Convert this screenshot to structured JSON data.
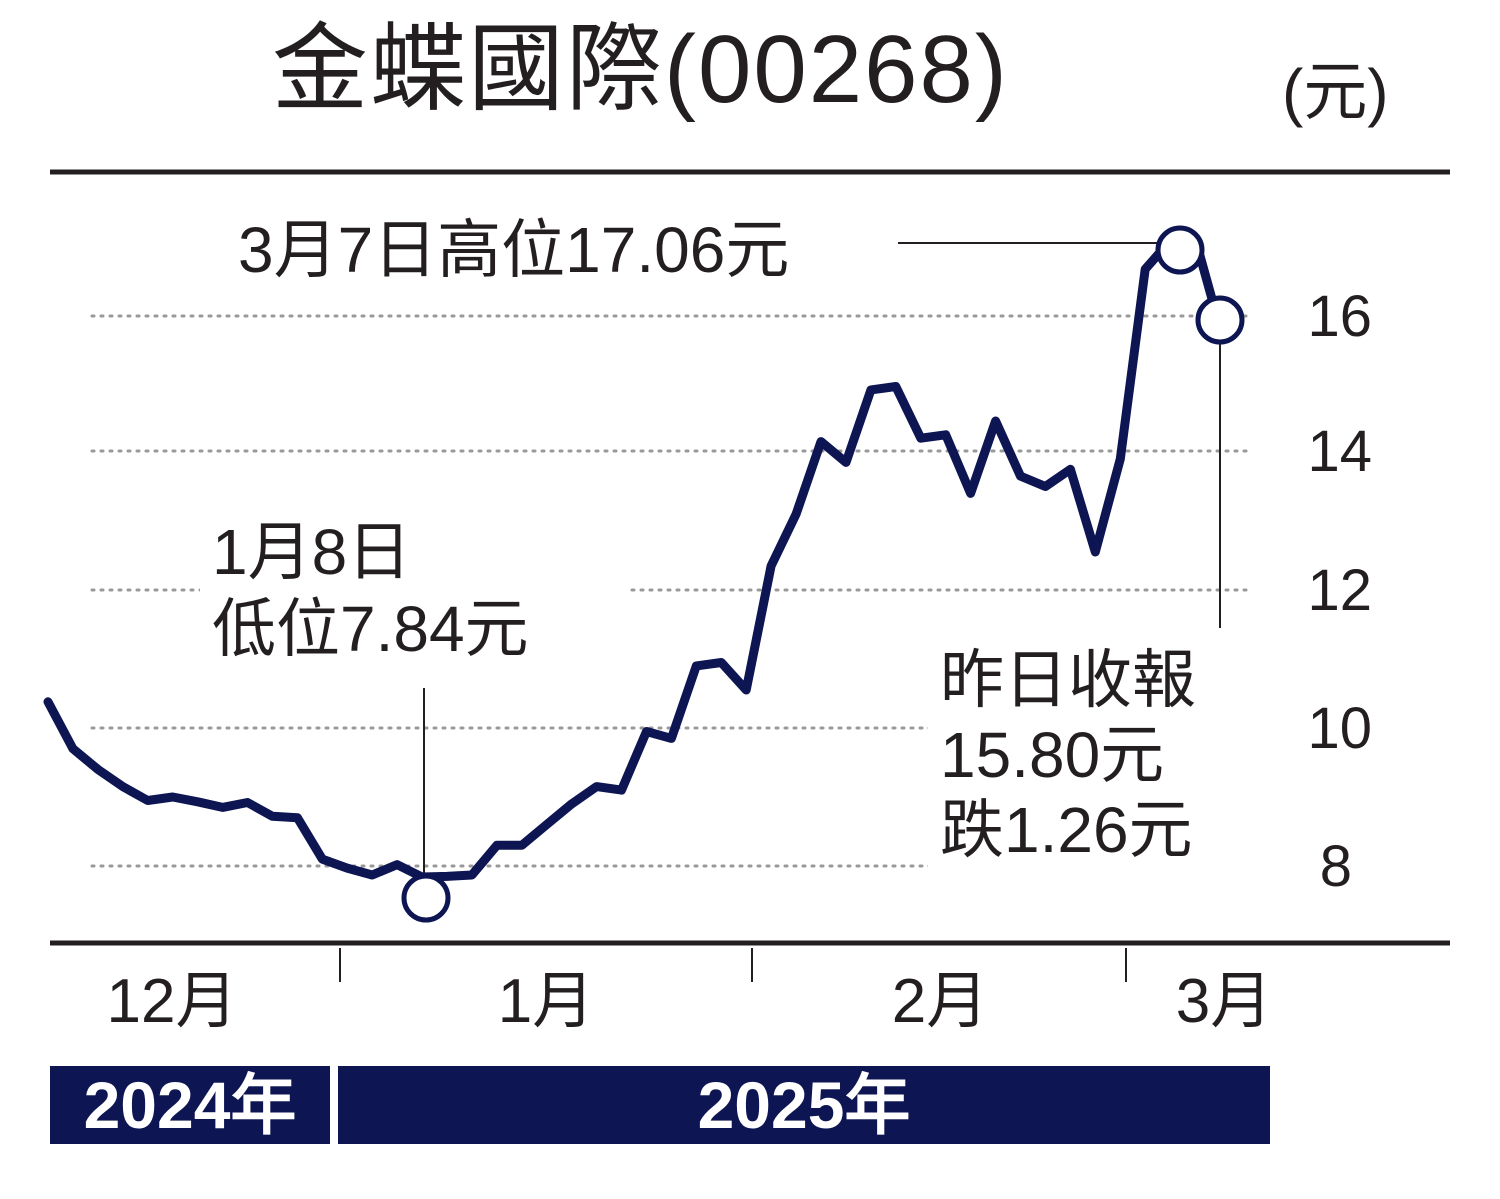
{
  "title": "金蝶國際(00268)",
  "unit": "(元)",
  "year_labels": [
    "2024年",
    "2025年"
  ],
  "annotations": {
    "high": "3月7日高位17.06元",
    "low_line1": "1月8日",
    "low_line2": "低位7.84元",
    "close_line1": "昨日收報",
    "close_line2": "15.80元",
    "close_line3": "跌1.26元"
  },
  "colors": {
    "line": "#0d1552",
    "text": "#231f20",
    "grid": "#999999",
    "year_bar": "#0d1552"
  },
  "chart_data": {
    "type": "line",
    "title": "金蝶國際(00268)",
    "ylabel": "(元)",
    "xlabel": "",
    "x_tick_labels": [
      "12月",
      "1月",
      "2月",
      "3月"
    ],
    "y_ticks": [
      8,
      10,
      12,
      14,
      16
    ],
    "ylim": [
      6.9,
      17.8
    ],
    "grid": "horizontal dotted",
    "series": [
      {
        "values": [
          10.38,
          9.7,
          9.4,
          9.15,
          8.95,
          9.0,
          8.93,
          8.85,
          8.92,
          8.72,
          8.7,
          8.1,
          7.97,
          7.87,
          8.02,
          7.84,
          7.85,
          7.87,
          8.3,
          8.3,
          8.6,
          8.9,
          9.15,
          9.1,
          9.95,
          9.85,
          10.9,
          10.95,
          10.55,
          12.35,
          13.1,
          14.15,
          13.85,
          14.9,
          14.95,
          14.2,
          14.25,
          13.4,
          14.45,
          13.65,
          13.5,
          13.75,
          12.55,
          13.9,
          16.65,
          17.06,
          17.1,
          15.8
        ]
      }
    ],
    "points": [
      {
        "label": "3月7日高位17.06元",
        "value": 17.06
      },
      {
        "label": "1月8日 低位7.84元",
        "value": 7.84
      },
      {
        "label": "昨日收報 15.80元 跌1.26元",
        "value": 15.8
      }
    ]
  }
}
